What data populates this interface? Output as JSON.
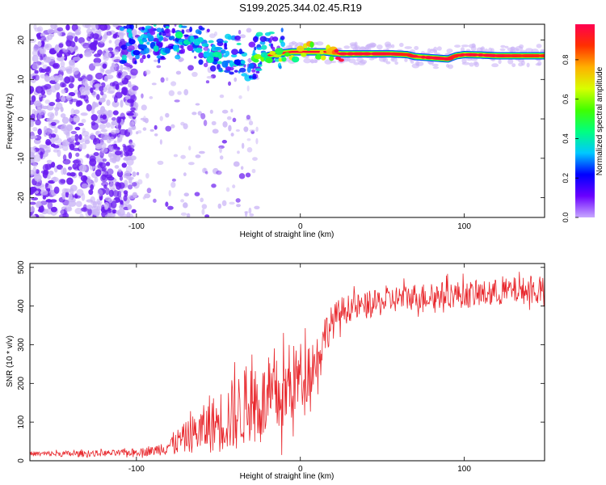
{
  "figure_title": "S199.2025.344.02.45.R19",
  "colors": {
    "snr_line": "#e8262b",
    "ridge_core": "#e8102a",
    "scatter_main": "#6a1cf0",
    "scatter_light": "#c9b3f6"
  },
  "chart_data": [
    {
      "type": "heatmap",
      "title": "S199.2025.344.02.45.R19",
      "xlabel": "Height of straight line (km)",
      "ylabel": "Frequency (Hz)",
      "xlim": [
        -165,
        149
      ],
      "ylim": [
        -25,
        24
      ],
      "xticks": [
        -100,
        0,
        100
      ],
      "yticks": [
        -20,
        -10,
        0,
        10,
        20
      ],
      "colorbar": {
        "label": "Normalized spectral amplitude",
        "range": [
          0,
          0.98
        ],
        "ticks": [
          0.0,
          0.2,
          0.4,
          0.6,
          0.8
        ],
        "palette": [
          "#c8a8ff",
          "#6a00ff",
          "#0000ff",
          "#00c8ff",
          "#00ff80",
          "#40ff00",
          "#d8ff00",
          "#ffb000",
          "#ff3000",
          "#ff0050"
        ]
      },
      "ridge": {
        "x": [
          -105,
          -90,
          -75,
          -60,
          -50,
          -40,
          -30,
          -25,
          -15,
          -5,
          5,
          15,
          25,
          40,
          55,
          65,
          70,
          80,
          90,
          95,
          100,
          110,
          120,
          135,
          149
        ],
        "frequency": [
          17.5,
          18.5,
          19.5,
          18.0,
          16.0,
          15.0,
          13.5,
          15.5,
          16.5,
          17.0,
          17.0,
          17.0,
          16.5,
          16.5,
          16.5,
          16.3,
          15.8,
          15.5,
          15.2,
          16.0,
          16.3,
          16.2,
          16.0,
          16.0,
          16.0
        ],
        "peak_amplitude": [
          0.3,
          0.3,
          0.35,
          0.3,
          0.35,
          0.3,
          0.35,
          0.5,
          0.55,
          0.6,
          0.65,
          0.6,
          0.95,
          0.95,
          0.95,
          0.9,
          0.95,
          0.95,
          0.95,
          0.9,
          0.95,
          0.95,
          0.95,
          0.9,
          0.9
        ]
      }
    },
    {
      "type": "line",
      "xlabel": "Height of straight line (km)",
      "ylabel": "SNR (10 * v/v)",
      "xlim": [
        -165,
        149
      ],
      "ylim": [
        0,
        510
      ],
      "xticks": [
        -100,
        0,
        100
      ],
      "yticks": [
        0,
        100,
        200,
        300,
        400,
        500
      ],
      "series": [
        {
          "name": "SNR",
          "x": [
            -165,
            -140,
            -110,
            -90,
            -80,
            -70,
            -60,
            -50,
            -40,
            -30,
            -20,
            -10,
            -5,
            0,
            5,
            10,
            15,
            20,
            25,
            30,
            40,
            50,
            60,
            70,
            80,
            90,
            100,
            110,
            120,
            130,
            140,
            149
          ],
          "mean": [
            18,
            18,
            20,
            25,
            40,
            60,
            80,
            100,
            120,
            150,
            150,
            170,
            200,
            220,
            240,
            260,
            330,
            360,
            385,
            395,
            400,
            410,
            420,
            425,
            425,
            430,
            430,
            430,
            435,
            440,
            440,
            440
          ],
          "noise": [
            6,
            8,
            8,
            12,
            25,
            40,
            60,
            80,
            100,
            100,
            100,
            110,
            100,
            90,
            80,
            70,
            50,
            45,
            40,
            35,
            35,
            35,
            35,
            35,
            35,
            35,
            35,
            35,
            35,
            35,
            35,
            35
          ]
        }
      ]
    }
  ]
}
